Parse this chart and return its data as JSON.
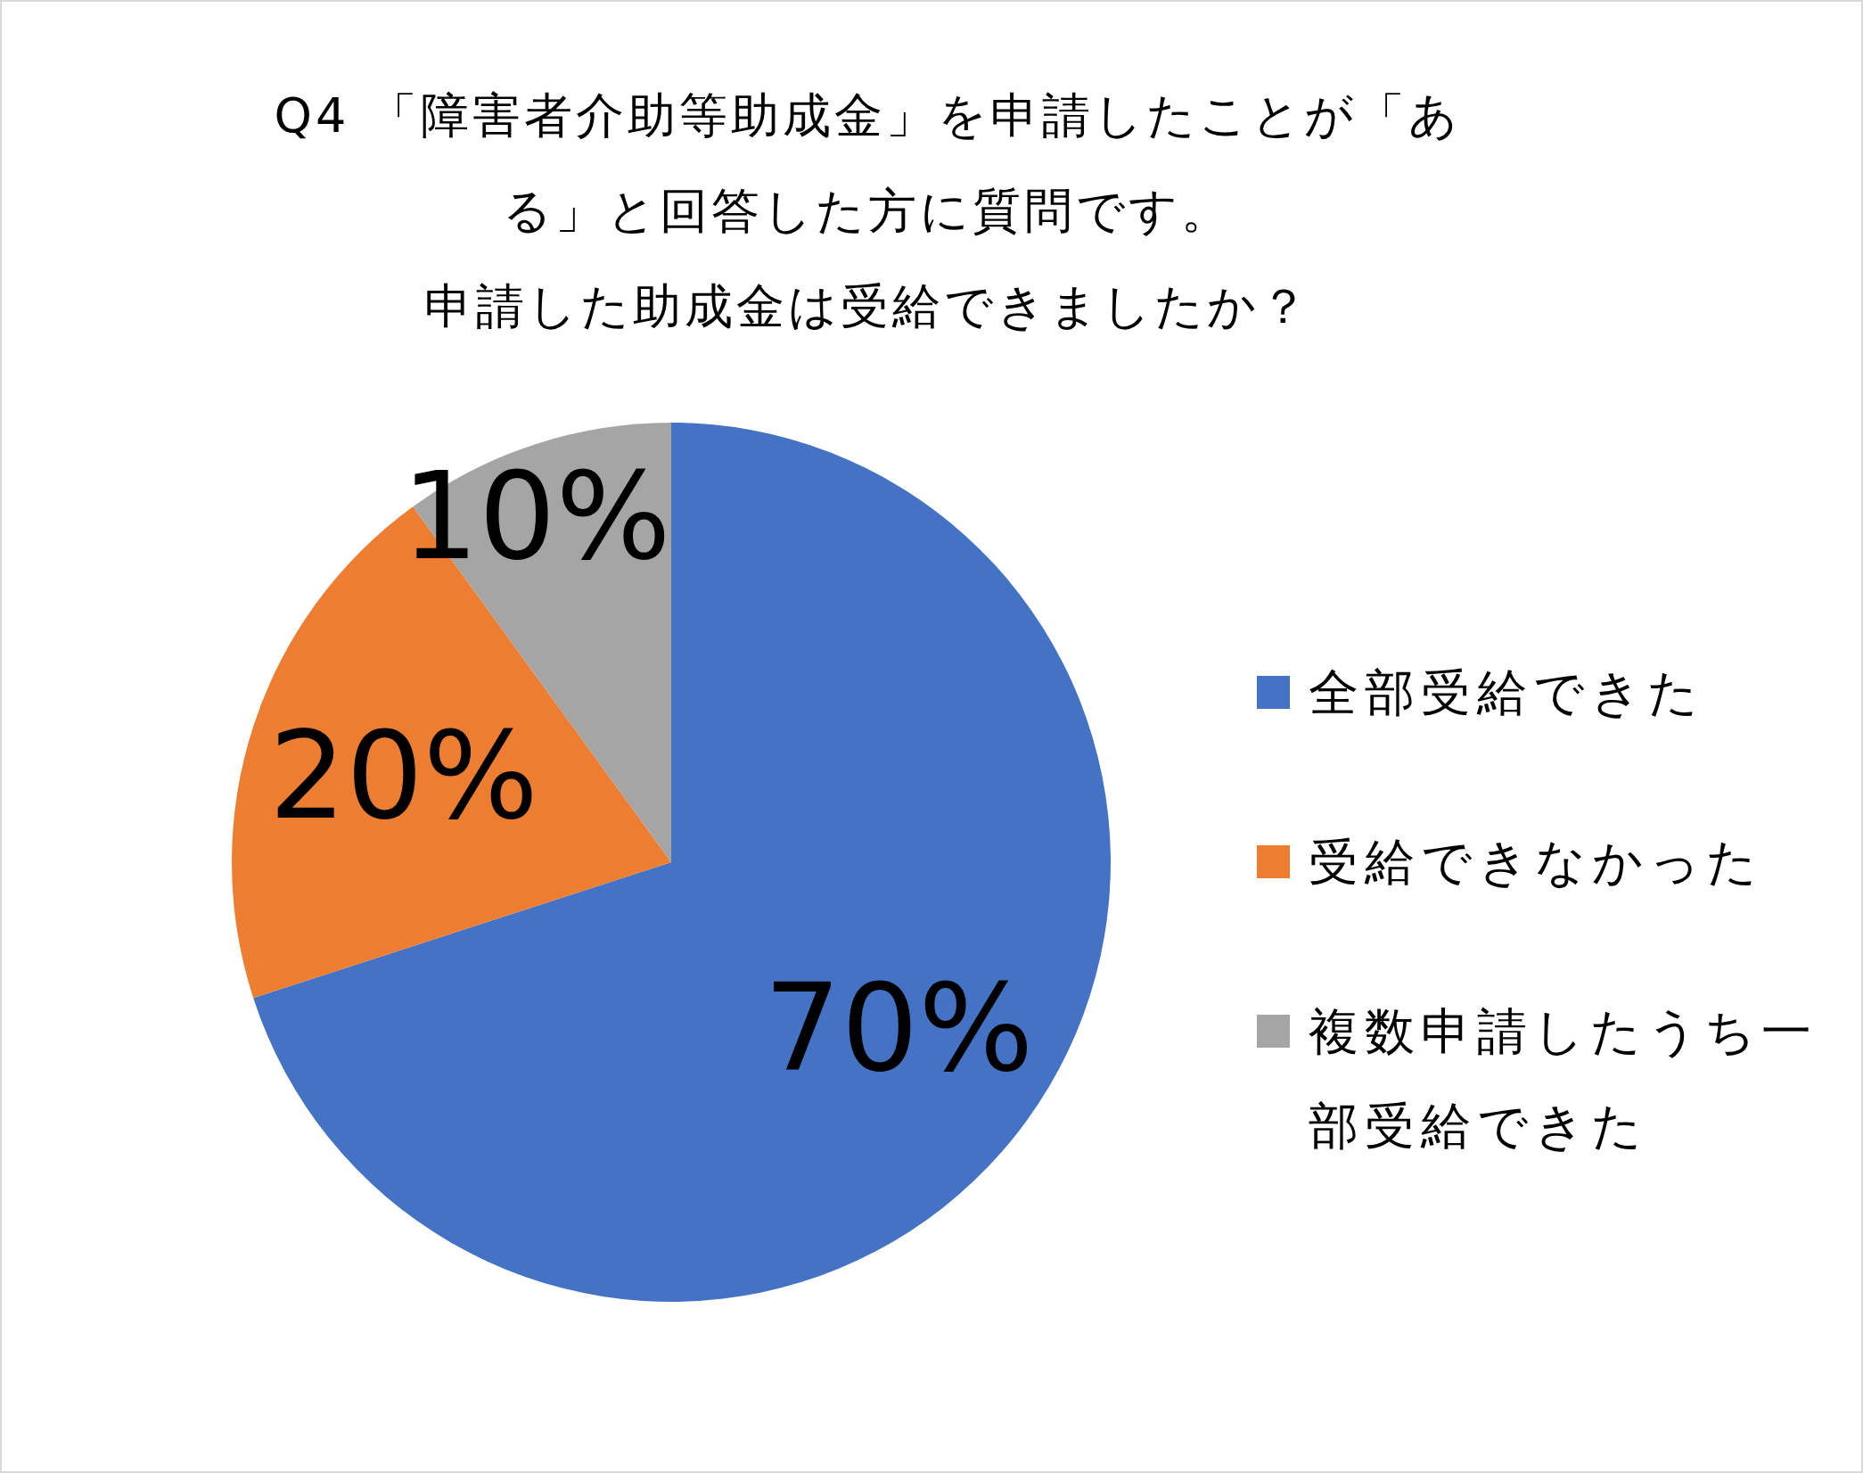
{
  "chart_data": {
    "type": "pie",
    "title": "Q4 「障害者介助等助成金」を申請したことが「ある」と回答した方に質問です。",
    "subtitle": "申請した助成金は受給できましたか？",
    "categories": [
      "全部受給できた",
      "受給できなかった",
      "複数申請したうち一部受給できた"
    ],
    "values": [
      70,
      20,
      10
    ],
    "colors": [
      "#4472c4",
      "#ed7d31",
      "#a5a5a5"
    ],
    "value_labels": [
      "70%",
      "20%",
      "10%"
    ],
    "legend": "right"
  }
}
